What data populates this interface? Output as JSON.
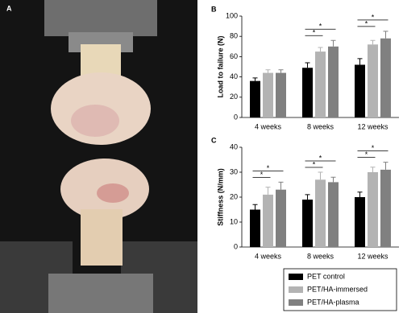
{
  "photo": {
    "panel_label": "A"
  },
  "chart_data": [
    {
      "type": "bar",
      "panel_label": "B",
      "y_label": "Load to failure (N)",
      "categories": [
        "4 weeks",
        "8 weeks",
        "12 weeks"
      ],
      "series": [
        {
          "name": "PET control",
          "color": "#000000",
          "values": [
            36,
            49,
            52
          ],
          "errors": [
            3,
            5,
            6
          ]
        },
        {
          "name": "PET/HA-immersed",
          "color": "#b3b3b3",
          "values": [
            44,
            65,
            72
          ],
          "errors": [
            3,
            4,
            4
          ]
        },
        {
          "name": "PET/HA-plasma",
          "color": "#808080",
          "values": [
            44,
            70,
            78
          ],
          "errors": [
            3,
            6,
            7
          ]
        }
      ],
      "ylim": [
        0,
        100
      ],
      "yticks": [
        0,
        20,
        40,
        60,
        80,
        100
      ],
      "annotations": [
        {
          "category": "8 weeks",
          "from": "PET control",
          "to": "PET/HA-immersed",
          "text": "*"
        },
        {
          "category": "8 weeks",
          "from": "PET control",
          "to": "PET/HA-plasma",
          "text": "*"
        },
        {
          "category": "12 weeks",
          "from": "PET control",
          "to": "PET/HA-immersed",
          "text": "*"
        },
        {
          "category": "12 weeks",
          "from": "PET control",
          "to": "PET/HA-plasma",
          "text": "*"
        }
      ]
    },
    {
      "type": "bar",
      "panel_label": "C",
      "y_label": "Stiffness (N/mm)",
      "categories": [
        "4 weeks",
        "8 weeks",
        "12 weeks"
      ],
      "series": [
        {
          "name": "PET control",
          "color": "#000000",
          "values": [
            15,
            19,
            20
          ],
          "errors": [
            2,
            2,
            2
          ]
        },
        {
          "name": "PET/HA-immersed",
          "color": "#b3b3b3",
          "values": [
            21,
            27,
            30
          ],
          "errors": [
            3,
            3,
            2
          ]
        },
        {
          "name": "PET/HA-plasma",
          "color": "#808080",
          "values": [
            23,
            26,
            31
          ],
          "errors": [
            3,
            2,
            3
          ]
        }
      ],
      "ylim": [
        0,
        40
      ],
      "yticks": [
        0,
        10,
        20,
        30,
        40
      ],
      "annotations": [
        {
          "category": "4 weeks",
          "from": "PET control",
          "to": "PET/HA-immersed",
          "text": "*"
        },
        {
          "category": "4 weeks",
          "from": "PET control",
          "to": "PET/HA-plasma",
          "text": "*"
        },
        {
          "category": "8 weeks",
          "from": "PET control",
          "to": "PET/HA-immersed",
          "text": "*"
        },
        {
          "category": "8 weeks",
          "from": "PET control",
          "to": "PET/HA-plasma",
          "text": "*"
        },
        {
          "category": "12 weeks",
          "from": "PET control",
          "to": "PET/HA-immersed",
          "text": "*"
        },
        {
          "category": "12 weeks",
          "from": "PET control",
          "to": "PET/HA-plasma",
          "text": "*"
        }
      ]
    }
  ]
}
